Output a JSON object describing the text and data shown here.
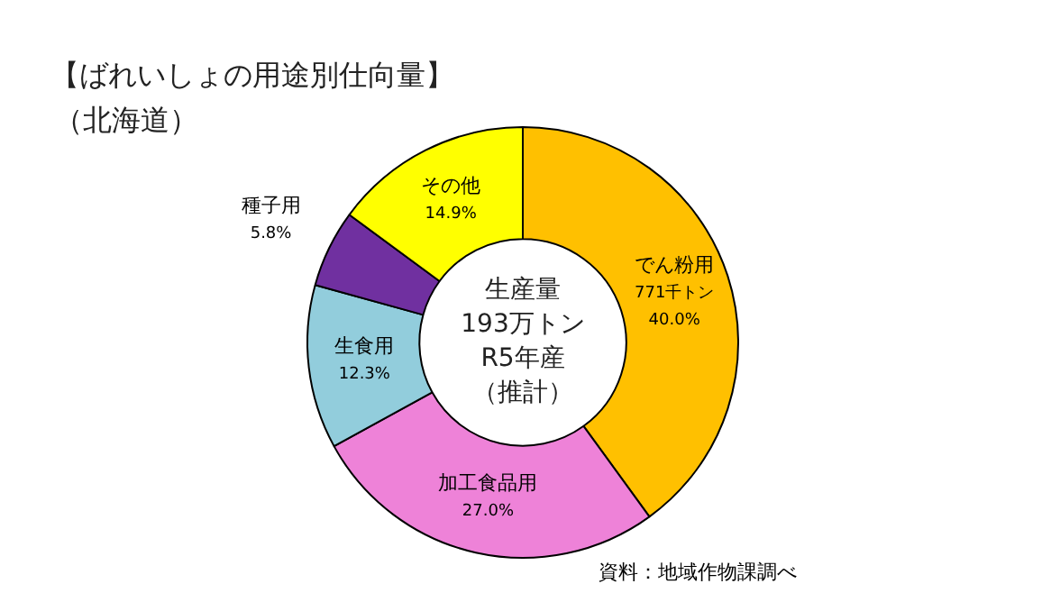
{
  "chart_data": {
    "type": "donut",
    "title": "【ばれいしょの用途別仕向量】",
    "subtitle": "（北海道）",
    "categories": [
      "でん粉用",
      "加工食品用",
      "生食用",
      "種子用",
      "その他"
    ],
    "values": [
      40.0,
      27.0,
      12.3,
      5.8,
      14.9
    ],
    "value_labels": [
      "771千トン\n40.0%",
      "27.0%",
      "12.3%",
      "5.8%",
      "14.9%"
    ],
    "colors": [
      "#ffc000",
      "#ee82d8",
      "#92cddc",
      "#7030a0",
      "#ffff00"
    ],
    "annotations": [
      "生産量",
      "193万トン",
      "R5年産",
      "（推計）",
      "資料：地域作物課調べ"
    ],
    "legend": false
  }
}
